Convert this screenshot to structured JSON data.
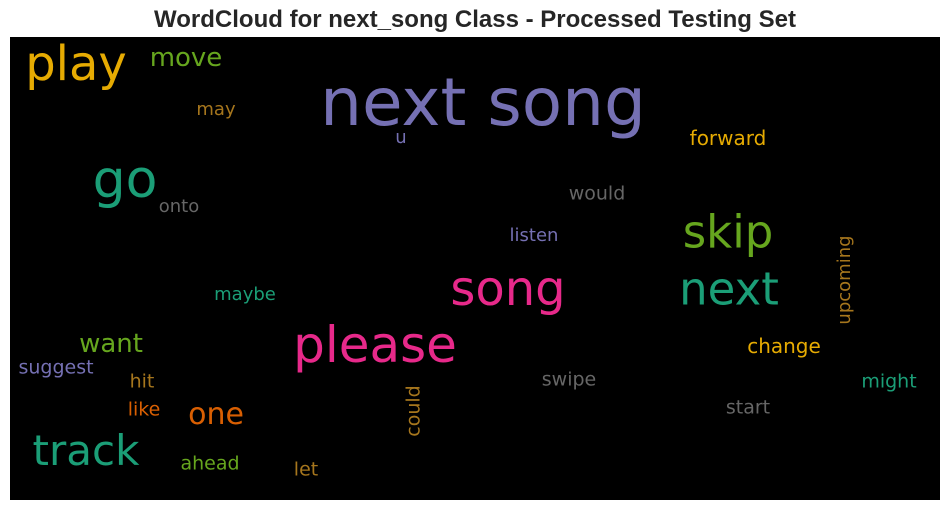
{
  "chart_data": {
    "type": "wordcloud",
    "title": "WordCloud for next_song Class - Processed Testing Set",
    "background": "#000000",
    "words": [
      {
        "text": "next song",
        "weight": 1.0,
        "color": "#7570b3"
      },
      {
        "text": "please",
        "weight": 0.62,
        "color": "#e7298a"
      },
      {
        "text": "song",
        "weight": 0.6,
        "color": "#e7298a"
      },
      {
        "text": "next",
        "weight": 0.6,
        "color": "#1b9e77"
      },
      {
        "text": "play",
        "weight": 0.6,
        "color": "#e6ab02"
      },
      {
        "text": "go",
        "weight": 0.6,
        "color": "#1b9e77"
      },
      {
        "text": "skip",
        "weight": 0.6,
        "color": "#66a61e"
      },
      {
        "text": "track",
        "weight": 0.55,
        "color": "#1b9e77"
      },
      {
        "text": "one",
        "weight": 0.4,
        "color": "#d95f02"
      },
      {
        "text": "want",
        "weight": 0.35,
        "color": "#66a61e"
      },
      {
        "text": "move",
        "weight": 0.35,
        "color": "#66a61e"
      },
      {
        "text": "forward",
        "weight": 0.3,
        "color": "#e6ab02"
      },
      {
        "text": "would",
        "weight": 0.28,
        "color": "#666666"
      },
      {
        "text": "listen",
        "weight": 0.27,
        "color": "#7570b3"
      },
      {
        "text": "maybe",
        "weight": 0.27,
        "color": "#1b9e77"
      },
      {
        "text": "upcoming",
        "weight": 0.27,
        "color": "#a6761d"
      },
      {
        "text": "change",
        "weight": 0.3,
        "color": "#e6ab02"
      },
      {
        "text": "suggest",
        "weight": 0.28,
        "color": "#7570b3"
      },
      {
        "text": "hit",
        "weight": 0.27,
        "color": "#a6761d"
      },
      {
        "text": "swipe",
        "weight": 0.28,
        "color": "#666666"
      },
      {
        "text": "might",
        "weight": 0.28,
        "color": "#1b9e77"
      },
      {
        "text": "like",
        "weight": 0.27,
        "color": "#d95f02"
      },
      {
        "text": "could",
        "weight": 0.27,
        "color": "#a6761d"
      },
      {
        "text": "start",
        "weight": 0.28,
        "color": "#666666"
      },
      {
        "text": "ahead",
        "weight": 0.27,
        "color": "#66a61e"
      },
      {
        "text": "let",
        "weight": 0.27,
        "color": "#a6761d"
      },
      {
        "text": "onto",
        "weight": 0.27,
        "color": "#666666"
      },
      {
        "text": "may",
        "weight": 0.27,
        "color": "#a6761d"
      },
      {
        "text": "u",
        "weight": 0.27,
        "color": "#7570b3"
      }
    ]
  }
}
